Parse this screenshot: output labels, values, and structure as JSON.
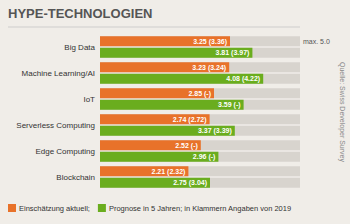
{
  "chart_data": {
    "type": "bar",
    "orientation": "horizontal",
    "title": "HYPE-TECHNOLOGIEN",
    "categories": [
      "Big Data",
      "Machine Learning/AI",
      "IoT",
      "Serverless Computing",
      "Edge Computing",
      "Blockchain"
    ],
    "series": [
      {
        "name": "Einschätzung aktuell;",
        "color": "#E8722A",
        "values": [
          3.25,
          3.23,
          2.85,
          2.74,
          2.52,
          2.21
        ],
        "value_labels": [
          "3.25 (3.36)",
          "3.23 (3.24)",
          "2.85 (-)",
          "2.74 (2.72)",
          "2.52 (-)",
          "2.21 (2.32)"
        ]
      },
      {
        "name": "Prognose in 5 Jahren; in Klammern Angaben von 2019",
        "color": "#6AAD1E",
        "values": [
          3.81,
          4.08,
          3.59,
          3.37,
          2.96,
          2.75
        ],
        "value_labels": [
          "3.81 (3.97)",
          "4.08 (4.22)",
          "3.59 (-)",
          "3.37 (3.39)",
          "2.96 (-)",
          "2.75 (3.04)"
        ]
      }
    ],
    "xlim": [
      0,
      5.0
    ],
    "annotations": [
      "max. 5.0",
      "Quelle: Swiss Developer Survey"
    ],
    "data_labels": true,
    "tick_labels": false,
    "grid": false,
    "legend": "bottom"
  }
}
